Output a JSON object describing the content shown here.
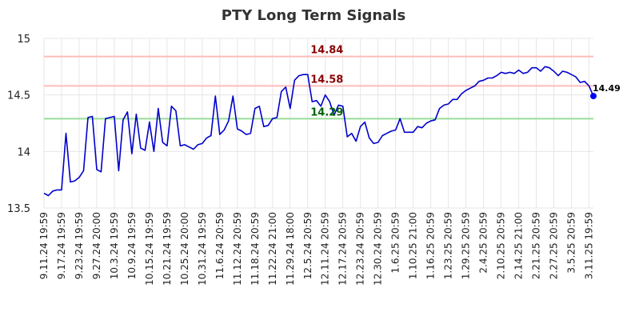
{
  "chart_data": {
    "type": "line",
    "title": "PTY Long Term Signals",
    "xlabel": "",
    "ylabel": "",
    "ylim": [
      13.5,
      15
    ],
    "yticks": [
      13.5,
      14,
      14.5,
      15
    ],
    "ytick_labels": [
      "13.5",
      "14",
      "14.5",
      "15"
    ],
    "grid": true,
    "legend": "none",
    "colors": {
      "line": "#0000cc",
      "last_marker": "#0000ff",
      "upper_line": "#ffbbbb",
      "lower_line": "#99dd99",
      "upper_text": "#8b0000",
      "lower_text": "#006400",
      "grid": "#e6e6e6"
    },
    "x_tick_labels": [
      "9.11.24 19:59",
      "9.17.24 19:59",
      "9.23.24 19:59",
      "9.27.24 20:00",
      "10.3.24 19:59",
      "10.9.24 19:59",
      "10.15.24 19:59",
      "10.21.24 19:59",
      "10.25.24 20:00",
      "10.31.24 19:59",
      "11.6.24 20:59",
      "11.12.24 20:59",
      "11.18.24 20:59",
      "11.22.24 21:00",
      "11.29.24 18:00",
      "12.5.24 20:59",
      "12.11.24 20:59",
      "12.17.24 20:59",
      "12.23.24 20:59",
      "12.30.24 20:59",
      "1.6.25 20:59",
      "1.10.25 21:00",
      "1.16.25 20:59",
      "1.23.25 20:59",
      "1.29.25 20:59",
      "2.4.25 20:59",
      "2.10.25 20:59",
      "2.14.25 21:00",
      "2.21.25 20:59",
      "2.27.25 20:59",
      "3.5.25 20:59",
      "3.11.25 19:59"
    ],
    "x_tick_index": [
      0,
      4,
      8,
      12,
      16,
      20,
      24,
      28,
      32,
      36,
      40,
      44,
      48,
      52,
      56,
      60,
      64,
      68,
      72,
      76,
      80,
      84,
      88,
      92,
      96,
      100,
      104,
      108,
      112,
      116,
      120,
      124
    ],
    "values": [
      13.63,
      13.61,
      13.65,
      13.66,
      13.66,
      14.16,
      13.73,
      13.74,
      13.77,
      13.83,
      14.3,
      14.31,
      13.84,
      13.82,
      14.29,
      14.3,
      14.31,
      13.83,
      14.28,
      14.35,
      13.98,
      14.33,
      14.03,
      14.01,
      14.26,
      14.0,
      14.38,
      14.08,
      14.05,
      14.4,
      14.36,
      14.05,
      14.06,
      14.04,
      14.02,
      14.06,
      14.07,
      14.12,
      14.14,
      14.49,
      14.15,
      14.19,
      14.27,
      14.49,
      14.2,
      14.18,
      14.15,
      14.16,
      14.38,
      14.4,
      14.22,
      14.23,
      14.29,
      14.3,
      14.53,
      14.57,
      14.38,
      14.63,
      14.67,
      14.68,
      14.68,
      14.44,
      14.45,
      14.4,
      14.5,
      14.44,
      14.32,
      14.41,
      14.4,
      14.13,
      14.16,
      14.09,
      14.22,
      14.26,
      14.12,
      14.07,
      14.08,
      14.14,
      14.16,
      14.18,
      14.19,
      14.29,
      14.17,
      14.17,
      14.17,
      14.22,
      14.21,
      14.25,
      14.27,
      14.28,
      14.38,
      14.41,
      14.42,
      14.46,
      14.46,
      14.51,
      14.54,
      14.56,
      14.58,
      14.62,
      14.63,
      14.65,
      14.65,
      14.67,
      14.7,
      14.69,
      14.7,
      14.69,
      14.72,
      14.69,
      14.7,
      14.74,
      14.74,
      14.71,
      14.75,
      14.74,
      14.71,
      14.67,
      14.71,
      14.7,
      14.68,
      14.66,
      14.61,
      14.62,
      14.58,
      14.49
    ],
    "last_value_label": "14.49",
    "hlines": [
      {
        "value": 14.84,
        "label": "14.84",
        "kind": "upper"
      },
      {
        "value": 14.58,
        "label": "14.58",
        "kind": "upper"
      },
      {
        "value": 14.29,
        "label": "14.29",
        "kind": "lower"
      }
    ]
  }
}
